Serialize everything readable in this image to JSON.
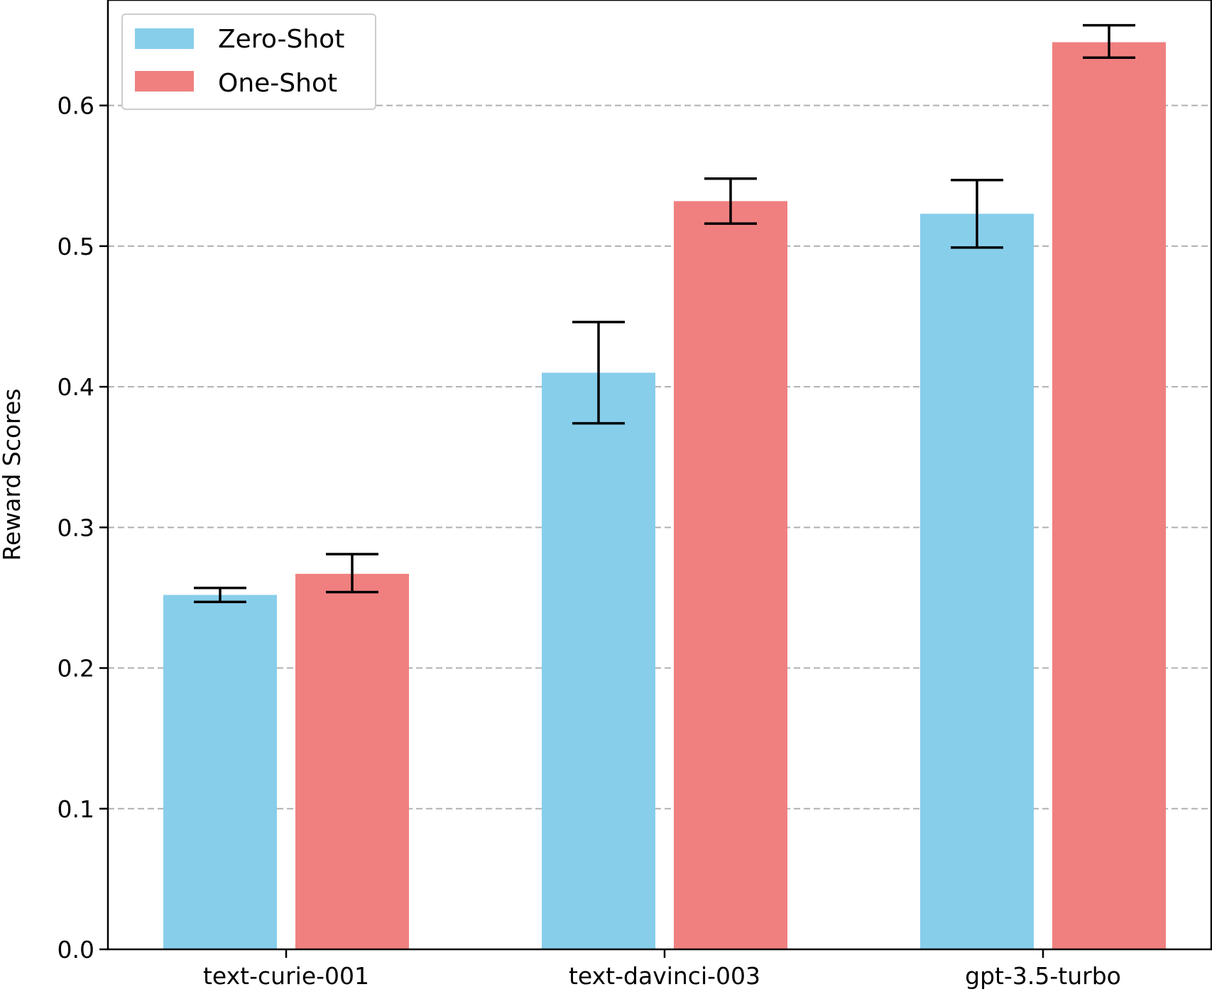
{
  "chart_data": {
    "type": "bar",
    "title": "",
    "xlabel": "",
    "ylabel": "Reward Scores",
    "ylim": [
      0,
      0.675
    ],
    "yticks": [
      "0.0",
      "0.1",
      "0.2",
      "0.3",
      "0.4",
      "0.5",
      "0.6"
    ],
    "grid": "horizontal dashed",
    "legend_placement": "top-left",
    "categories": [
      "text-curie-001",
      "text-davinci-003",
      "gpt-3.5-turbo"
    ],
    "series": [
      {
        "name": "Zero-Shot",
        "color": "#87ceeb",
        "values": [
          0.252,
          0.41,
          0.523
        ],
        "error_low": [
          0.247,
          0.374,
          0.499
        ],
        "error_high": [
          0.257,
          0.446,
          0.547
        ]
      },
      {
        "name": "One-Shot",
        "color": "#f08080",
        "values": [
          0.267,
          0.532,
          0.645
        ],
        "error_low": [
          0.254,
          0.516,
          0.634
        ],
        "error_high": [
          0.281,
          0.548,
          0.657
        ]
      }
    ]
  }
}
